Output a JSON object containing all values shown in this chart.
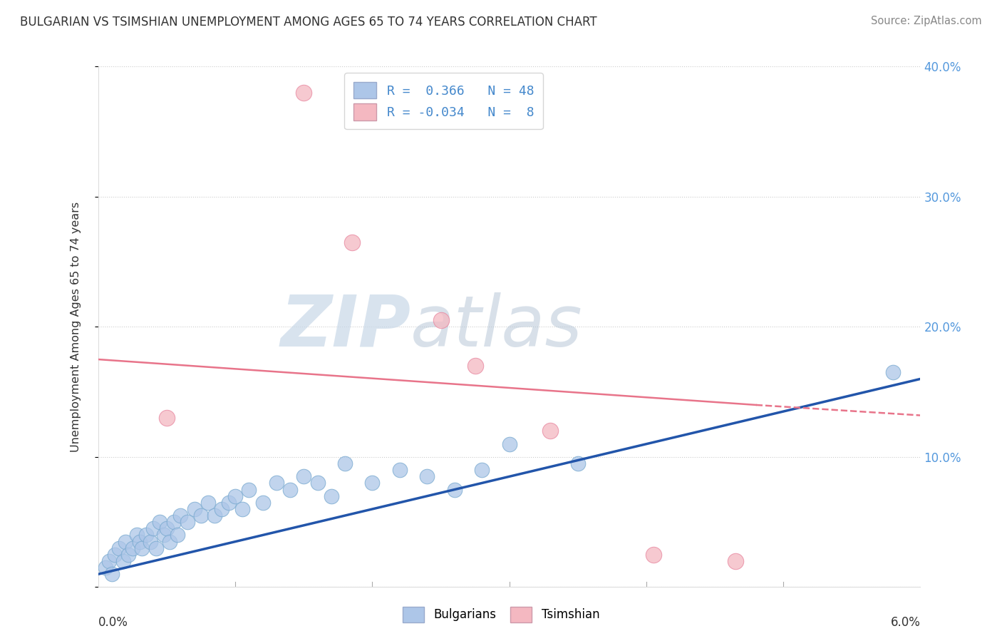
{
  "title": "BULGARIAN VS TSIMSHIAN UNEMPLOYMENT AMONG AGES 65 TO 74 YEARS CORRELATION CHART",
  "source": "Source: ZipAtlas.com",
  "ylabel": "Unemployment Among Ages 65 to 74 years",
  "xlim": [
    0.0,
    6.0
  ],
  "ylim": [
    0.0,
    40.0
  ],
  "yticks": [
    0.0,
    10.0,
    20.0,
    30.0,
    40.0
  ],
  "ytick_labels": [
    "",
    "10.0%",
    "20.0%",
    "30.0%",
    "40.0%"
  ],
  "watermark_zip": "ZIP",
  "watermark_atlas": "atlas",
  "blue_R": 0.366,
  "blue_N": 48,
  "pink_R": -0.034,
  "pink_N": 8,
  "blue_color": "#adc6e8",
  "pink_color": "#f4b8c1",
  "blue_edge_color": "#7aaad0",
  "pink_edge_color": "#e888a0",
  "blue_line_color": "#2255aa",
  "pink_line_color": "#e8748a",
  "legend_label1": "Bulgarians",
  "legend_label2": "Tsimshian",
  "blue_x": [
    0.05,
    0.08,
    0.1,
    0.12,
    0.15,
    0.18,
    0.2,
    0.22,
    0.25,
    0.28,
    0.3,
    0.32,
    0.35,
    0.38,
    0.4,
    0.42,
    0.45,
    0.48,
    0.5,
    0.52,
    0.55,
    0.58,
    0.6,
    0.65,
    0.7,
    0.75,
    0.8,
    0.85,
    0.9,
    0.95,
    1.0,
    1.05,
    1.1,
    1.2,
    1.3,
    1.4,
    1.5,
    1.6,
    1.7,
    1.8,
    2.0,
    2.2,
    2.4,
    2.6,
    2.8,
    3.0,
    3.5,
    5.8
  ],
  "blue_y": [
    1.5,
    2.0,
    1.0,
    2.5,
    3.0,
    2.0,
    3.5,
    2.5,
    3.0,
    4.0,
    3.5,
    3.0,
    4.0,
    3.5,
    4.5,
    3.0,
    5.0,
    4.0,
    4.5,
    3.5,
    5.0,
    4.0,
    5.5,
    5.0,
    6.0,
    5.5,
    6.5,
    5.5,
    6.0,
    6.5,
    7.0,
    6.0,
    7.5,
    6.5,
    8.0,
    7.5,
    8.5,
    8.0,
    7.0,
    9.5,
    8.0,
    9.0,
    8.5,
    7.5,
    9.0,
    11.0,
    9.5,
    16.5
  ],
  "pink_x": [
    0.5,
    1.5,
    1.85,
    2.5,
    2.75,
    3.3,
    4.05,
    4.65
  ],
  "pink_y": [
    13.0,
    38.0,
    26.5,
    20.5,
    17.0,
    12.0,
    2.5,
    2.0
  ],
  "blue_line_x0": 0.0,
  "blue_line_y0": 1.0,
  "blue_line_x1": 6.0,
  "blue_line_y1": 16.0,
  "pink_line_solid_x0": 0.0,
  "pink_line_solid_y0": 17.5,
  "pink_line_solid_x1": 4.8,
  "pink_line_solid_y1": 14.0,
  "pink_line_dash_x0": 4.8,
  "pink_line_dash_y0": 14.0,
  "pink_line_dash_x1": 6.0,
  "pink_line_dash_y1": 13.2
}
